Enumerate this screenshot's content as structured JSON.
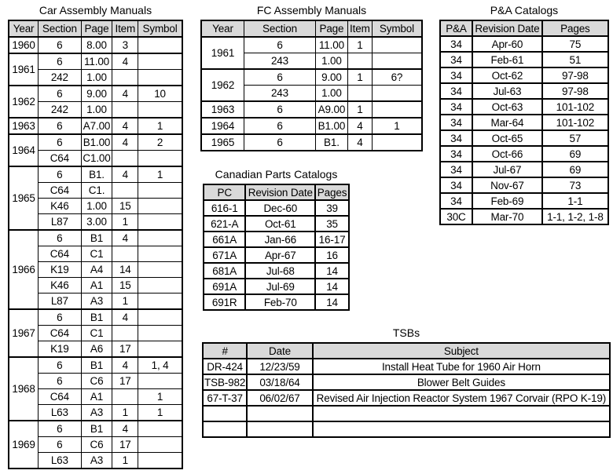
{
  "colors": {
    "header_bg": "#d9d9d9",
    "border": "#000000",
    "background": "#ffffff",
    "text": "#000000"
  },
  "tables": {
    "car": {
      "title": "Car Assembly Manuals",
      "headers": [
        "Year",
        "Section",
        "Page",
        "Item",
        "Symbol"
      ],
      "groups": [
        {
          "year": "1960",
          "rows": [
            [
              "6",
              "8.00",
              "3",
              ""
            ]
          ]
        },
        {
          "year": "1961",
          "rows": [
            [
              "6",
              "11.00",
              "4",
              ""
            ],
            [
              "242",
              "1.00",
              "",
              ""
            ]
          ]
        },
        {
          "year": "1962",
          "rows": [
            [
              "6",
              "9.00",
              "4",
              "10"
            ],
            [
              "242",
              "1.00",
              "",
              ""
            ]
          ]
        },
        {
          "year": "1963",
          "rows": [
            [
              "6",
              "A7.00",
              "4",
              "1"
            ]
          ]
        },
        {
          "year": "1964",
          "rows": [
            [
              "6",
              "B1.00",
              "4",
              "2"
            ],
            [
              "C64",
              "C1.00",
              "",
              ""
            ]
          ]
        },
        {
          "year": "1965",
          "rows": [
            [
              "6",
              "B1.",
              "4",
              "1"
            ],
            [
              "C64",
              "C1.",
              "",
              ""
            ],
            [
              "K46",
              "1.00",
              "15",
              ""
            ],
            [
              "L87",
              "3.00",
              "1",
              ""
            ]
          ]
        },
        {
          "year": "1966",
          "rows": [
            [
              "6",
              "B1",
              "4",
              ""
            ],
            [
              "C64",
              "C1",
              "",
              ""
            ],
            [
              "K19",
              "A4",
              "14",
              ""
            ],
            [
              "K46",
              "A1",
              "15",
              ""
            ],
            [
              "L87",
              "A3",
              "1",
              ""
            ]
          ]
        },
        {
          "year": "1967",
          "rows": [
            [
              "6",
              "B1",
              "4",
              ""
            ],
            [
              "C64",
              "C1",
              "",
              ""
            ],
            [
              "K19",
              "A6",
              "17",
              ""
            ]
          ]
        },
        {
          "year": "1968",
          "rows": [
            [
              "6",
              "B1",
              "4",
              "1, 4"
            ],
            [
              "6",
              "C6",
              "17",
              ""
            ],
            [
              "C64",
              "A1",
              "",
              "1"
            ],
            [
              "L63",
              "A3",
              "1",
              "1"
            ]
          ]
        },
        {
          "year": "1969",
          "rows": [
            [
              "6",
              "B1",
              "4",
              ""
            ],
            [
              "6",
              "C6",
              "17",
              ""
            ],
            [
              "L63",
              "A3",
              "1",
              ""
            ]
          ]
        }
      ]
    },
    "fc": {
      "title": "FC Assembly Manuals",
      "headers": [
        "Year",
        "Section",
        "Page",
        "Item",
        "Symbol"
      ],
      "groups": [
        {
          "year": "1961",
          "rows": [
            [
              "6",
              "11.00",
              "1",
              ""
            ],
            [
              "243",
              "1.00",
              "",
              ""
            ]
          ]
        },
        {
          "year": "1962",
          "rows": [
            [
              "6",
              "9.00",
              "1",
              "6?"
            ],
            [
              "243",
              "1.00",
              "",
              ""
            ]
          ]
        },
        {
          "year": "1963",
          "rows": [
            [
              "6",
              "A9.00",
              "1",
              ""
            ]
          ]
        },
        {
          "year": "1964",
          "rows": [
            [
              "6",
              "B1.00",
              "4",
              "1"
            ]
          ]
        },
        {
          "year": "1965",
          "rows": [
            [
              "6",
              "B1.",
              "4",
              ""
            ]
          ]
        }
      ]
    },
    "pa": {
      "title": "P&A Catalogs",
      "headers": [
        "P&A",
        "Revision Date",
        "Pages"
      ],
      "rows": [
        [
          "34",
          "Apr-60",
          "75"
        ],
        [
          "34",
          "Feb-61",
          "51"
        ],
        [
          "34",
          "Oct-62",
          "97-98"
        ],
        [
          "34",
          "Jul-63",
          "97-98"
        ],
        [
          "34",
          "Oct-63",
          "101-102"
        ],
        [
          "34",
          "Mar-64",
          "101-102"
        ],
        [
          "34",
          "Oct-65",
          "57"
        ],
        [
          "34",
          "Oct-66",
          "69"
        ],
        [
          "34",
          "Jul-67",
          "69"
        ],
        [
          "34",
          "Nov-67",
          "73"
        ],
        [
          "34",
          "Feb-69",
          "1-1"
        ],
        [
          "30C",
          "Mar-70",
          "1-1, 1-2, 1-8"
        ]
      ]
    },
    "canadian": {
      "title": "Canadian Parts Catalogs",
      "headers": [
        "PC",
        "Revision Date",
        "Pages"
      ],
      "rows": [
        [
          "616-1",
          "Dec-60",
          "39"
        ],
        [
          "621-A",
          "Oct-61",
          "35"
        ],
        [
          "661A",
          "Jan-66",
          "16-17"
        ],
        [
          "671A",
          "Apr-67",
          "16"
        ],
        [
          "681A",
          "Jul-68",
          "14"
        ],
        [
          "691A",
          "Jul-69",
          "14"
        ],
        [
          "691R",
          "Feb-70",
          "14"
        ]
      ]
    },
    "tsb": {
      "title": "TSBs",
      "headers": [
        "#",
        "Date",
        "Subject"
      ],
      "rows": [
        [
          "DR-424",
          "12/23/59",
          "Install Heat Tube for 1960 Air Horn"
        ],
        [
          "TSB-982",
          "03/18/64",
          "Blower Belt Guides"
        ],
        [
          "67-T-37",
          "06/02/67",
          "Revised Air Injection Reactor System 1967 Corvair (RPO K-19)"
        ],
        [
          "",
          "",
          ""
        ],
        [
          "",
          "",
          ""
        ]
      ]
    }
  }
}
